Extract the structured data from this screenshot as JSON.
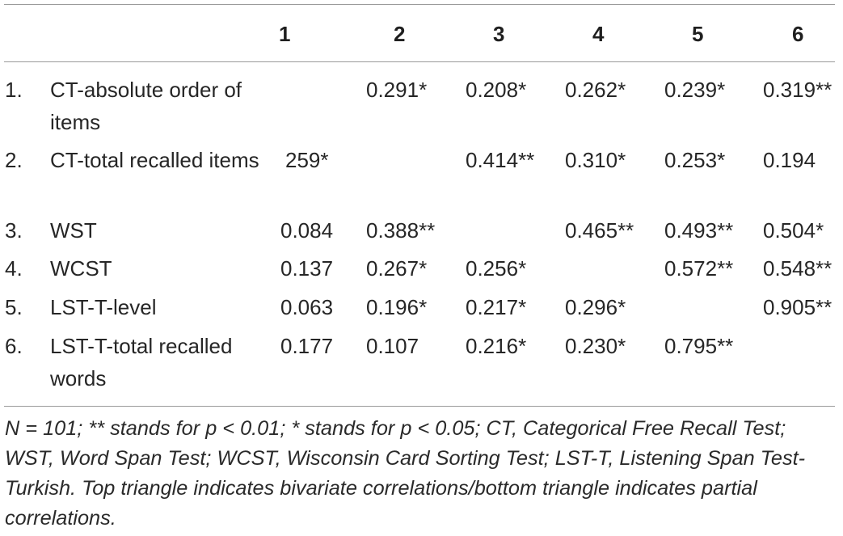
{
  "table": {
    "column_headers": [
      "1",
      "2",
      "3",
      "4",
      "5",
      "6"
    ],
    "rows": [
      {
        "number": "1.",
        "label": "CT-absolute order of items",
        "cells": [
          "",
          "0.291*",
          "0.208*",
          "0.262*",
          "0.239*",
          "0.319**"
        ]
      },
      {
        "number": "2.",
        "label": "CT-total recalled items",
        "cells": [
          "259*",
          "",
          "0.414**",
          "0.310*",
          "0.253*",
          "0.194"
        ]
      },
      {
        "number": "3.",
        "label": "WST",
        "cells": [
          "0.084",
          "0.388**",
          "",
          "0.465**",
          "0.493**",
          "0.504*"
        ]
      },
      {
        "number": "4.",
        "label": "WCST",
        "cells": [
          "0.137",
          "0.267*",
          "0.256*",
          "",
          "0.572**",
          "0.548**"
        ]
      },
      {
        "number": "5.",
        "label": "LST-T-level",
        "cells": [
          "0.063",
          "0.196*",
          "0.217*",
          "0.296*",
          "",
          "0.905**"
        ]
      },
      {
        "number": "6.",
        "label": "LST-T-total recalled words",
        "cells": [
          "0.177",
          "0.107",
          "0.216*",
          "0.230*",
          "0.795**",
          ""
        ]
      }
    ]
  },
  "footnote": "N = 101; ** stands for p < 0.01; * stands for p < 0.05; CT, Categorical Free Recall Test; WST, Word Span Test; WCST, Wisconsin Card Sorting Test; LST-T, Listening Span Test-Turkish. Top triangle indicates bivariate correlations/bottom triangle indicates partial correlations."
}
